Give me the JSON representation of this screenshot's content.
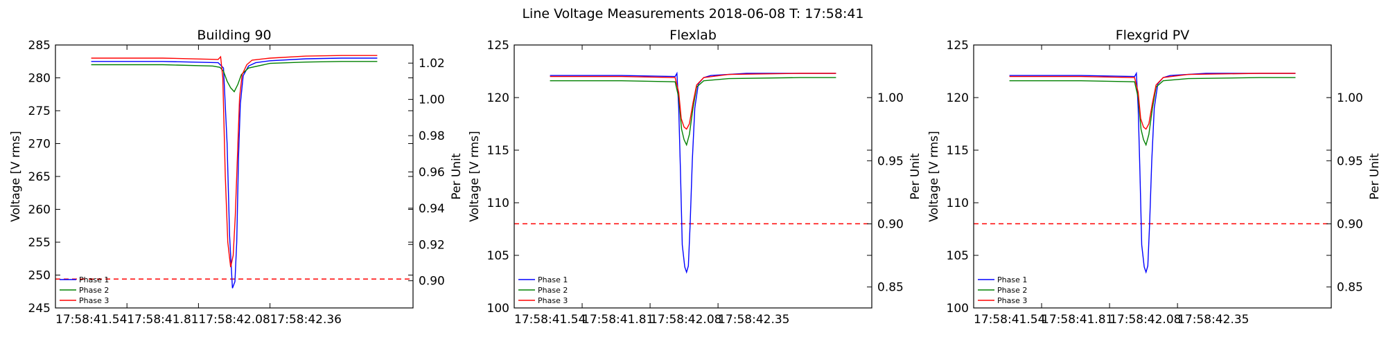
{
  "suptitle": "Line Voltage Measurements 2018-06-08 T: 17:58:41",
  "legend_labels": [
    "Phase 1",
    "Phase 2",
    "Phase 3"
  ],
  "colors": {
    "phase1": "#0000ff",
    "phase2": "#008000",
    "phase3": "#ff0000",
    "threshold": "#ff0000"
  },
  "chart_data": [
    {
      "type": "line",
      "title": "Building 90",
      "ylabel": "Voltage [V rms]",
      "ylabel2": "Per Unit",
      "xlim": [
        0,
        1.0
      ],
      "ylim": [
        245,
        285
      ],
      "yticks": [
        245,
        250,
        255,
        260,
        265,
        270,
        275,
        280,
        285
      ],
      "y2lim": [
        0.885,
        1.03
      ],
      "y2ticks": [
        0.9,
        0.92,
        0.94,
        0.96,
        0.98,
        1.0,
        1.02
      ],
      "y2ticklabels": [
        "0.90",
        "0.92",
        "0.94",
        "0.96",
        "0.98",
        "1.00",
        "1.02"
      ],
      "xtick_positions": [
        0.0,
        0.2,
        0.4,
        0.6
      ],
      "xticklabels": [
        "17:58:41.54",
        "17:58:41.81",
        "17:58:42.08",
        "17:58:42.36"
      ],
      "threshold": 249.4,
      "legend": "lower-left",
      "series": [
        {
          "name": "Phase 1",
          "color": "#0000ff",
          "points": [
            [
              0.1,
              282.5
            ],
            [
              0.3,
              282.5
            ],
            [
              0.455,
              282.3
            ],
            [
              0.47,
              281.5
            ],
            [
              0.48,
              270
            ],
            [
              0.487,
              256
            ],
            [
              0.495,
              248.0
            ],
            [
              0.502,
              249
            ],
            [
              0.507,
              255
            ],
            [
              0.512,
              268
            ],
            [
              0.517,
              276
            ],
            [
              0.525,
              280.3
            ],
            [
              0.54,
              281.8
            ],
            [
              0.56,
              282.3
            ],
            [
              0.6,
              282.6
            ],
            [
              0.7,
              282.9
            ],
            [
              0.8,
              283.0
            ],
            [
              0.9,
              283.0
            ]
          ]
        },
        {
          "name": "Phase 2",
          "color": "#008000",
          "points": [
            [
              0.1,
              282.0
            ],
            [
              0.3,
              282.0
            ],
            [
              0.44,
              281.8
            ],
            [
              0.46,
              281.6
            ],
            [
              0.47,
              281.0
            ],
            [
              0.48,
              279.5
            ],
            [
              0.49,
              278.5
            ],
            [
              0.5,
              277.9
            ],
            [
              0.51,
              279.0
            ],
            [
              0.52,
              280.5
            ],
            [
              0.54,
              281.5
            ],
            [
              0.6,
              282.2
            ],
            [
              0.7,
              282.4
            ],
            [
              0.8,
              282.5
            ],
            [
              0.9,
              282.5
            ]
          ]
        },
        {
          "name": "Phase 3",
          "color": "#ff0000",
          "points": [
            [
              0.1,
              283.0
            ],
            [
              0.3,
              283.0
            ],
            [
              0.455,
              282.8
            ],
            [
              0.462,
              283.2
            ],
            [
              0.468,
              280
            ],
            [
              0.475,
              265
            ],
            [
              0.482,
              255
            ],
            [
              0.49,
              251.2
            ],
            [
              0.497,
              253
            ],
            [
              0.503,
              259
            ],
            [
              0.509,
              268
            ],
            [
              0.515,
              277
            ],
            [
              0.522,
              280.5
            ],
            [
              0.535,
              282.0
            ],
            [
              0.55,
              282.7
            ],
            [
              0.6,
              283.0
            ],
            [
              0.7,
              283.3
            ],
            [
              0.8,
              283.4
            ],
            [
              0.9,
              283.4
            ]
          ]
        }
      ]
    },
    {
      "type": "line",
      "title": "Flexlab",
      "ylabel": "Voltage [V rms]",
      "ylabel2": "Per Unit",
      "xlim": [
        0,
        1.0
      ],
      "ylim": [
        100,
        125
      ],
      "yticks": [
        100,
        105,
        110,
        115,
        120,
        125
      ],
      "y2lim": [
        0.8334,
        1.0417
      ],
      "y2ticks": [
        0.85,
        0.9,
        0.95,
        1.0
      ],
      "y2ticklabels": [
        "0.85",
        "0.90",
        "0.95",
        "1.00"
      ],
      "xtick_positions": [
        0.0,
        0.19,
        0.38,
        0.57
      ],
      "xticklabels": [
        "17:58:41.54",
        "17:58:41.81",
        "17:58:42.08",
        "17:58:42.35"
      ],
      "threshold": 108,
      "legend": "lower-left",
      "series": [
        {
          "name": "Phase 1",
          "color": "#0000ff",
          "points": [
            [
              0.1,
              122.1
            ],
            [
              0.3,
              122.1
            ],
            [
              0.45,
              122.0
            ],
            [
              0.455,
              122.3
            ],
            [
              0.46,
              119
            ],
            [
              0.465,
              113
            ],
            [
              0.47,
              106
            ],
            [
              0.477,
              103.9
            ],
            [
              0.482,
              103.4
            ],
            [
              0.487,
              104
            ],
            [
              0.492,
              108
            ],
            [
              0.498,
              114
            ],
            [
              0.505,
              119
            ],
            [
              0.515,
              121.3
            ],
            [
              0.53,
              121.9
            ],
            [
              0.55,
              122.1
            ],
            [
              0.65,
              122.3
            ],
            [
              0.8,
              122.3
            ],
            [
              0.9,
              122.3
            ]
          ]
        },
        {
          "name": "Phase 2",
          "color": "#008000",
          "points": [
            [
              0.1,
              121.6
            ],
            [
              0.3,
              121.6
            ],
            [
              0.45,
              121.5
            ],
            [
              0.46,
              120
            ],
            [
              0.468,
              117
            ],
            [
              0.475,
              116
            ],
            [
              0.482,
              115.5
            ],
            [
              0.49,
              116.5
            ],
            [
              0.5,
              119
            ],
            [
              0.51,
              121
            ],
            [
              0.53,
              121.6
            ],
            [
              0.6,
              121.8
            ],
            [
              0.8,
              121.9
            ],
            [
              0.9,
              121.9
            ]
          ]
        },
        {
          "name": "Phase 3",
          "color": "#ff0000",
          "points": [
            [
              0.1,
              122.0
            ],
            [
              0.3,
              122.0
            ],
            [
              0.45,
              121.9
            ],
            [
              0.46,
              120.5
            ],
            [
              0.467,
              118
            ],
            [
              0.475,
              117.2
            ],
            [
              0.482,
              117.0
            ],
            [
              0.49,
              117.5
            ],
            [
              0.5,
              119.5
            ],
            [
              0.51,
              121.2
            ],
            [
              0.53,
              121.9
            ],
            [
              0.6,
              122.2
            ],
            [
              0.8,
              122.3
            ],
            [
              0.9,
              122.3
            ]
          ]
        }
      ]
    },
    {
      "type": "line",
      "title": "Flexgrid PV",
      "ylabel": "Voltage [V rms]",
      "ylabel2": "Per Unit",
      "xlim": [
        0,
        1.0
      ],
      "ylim": [
        100,
        125
      ],
      "yticks": [
        100,
        105,
        110,
        115,
        120,
        125
      ],
      "y2lim": [
        0.8334,
        1.0417
      ],
      "y2ticks": [
        0.85,
        0.9,
        0.95,
        1.0
      ],
      "y2ticklabels": [
        "0.85",
        "0.90",
        "0.95",
        "1.00"
      ],
      "xtick_positions": [
        0.0,
        0.19,
        0.38,
        0.57
      ],
      "xticklabels": [
        "17:58:41.54",
        "17:58:41.81",
        "17:58:42.08",
        "17:58:42.35"
      ],
      "threshold": 108,
      "legend": "lower-left",
      "series": [
        {
          "name": "Phase 1",
          "color": "#0000ff",
          "points": [
            [
              0.1,
              122.1
            ],
            [
              0.3,
              122.1
            ],
            [
              0.45,
              122.0
            ],
            [
              0.455,
              122.3
            ],
            [
              0.46,
              119
            ],
            [
              0.465,
              113
            ],
            [
              0.47,
              106
            ],
            [
              0.477,
              103.9
            ],
            [
              0.482,
              103.4
            ],
            [
              0.487,
              104
            ],
            [
              0.492,
              108
            ],
            [
              0.498,
              114
            ],
            [
              0.505,
              119
            ],
            [
              0.515,
              121.3
            ],
            [
              0.53,
              121.9
            ],
            [
              0.55,
              122.1
            ],
            [
              0.65,
              122.3
            ],
            [
              0.8,
              122.3
            ],
            [
              0.9,
              122.3
            ]
          ]
        },
        {
          "name": "Phase 2",
          "color": "#008000",
          "points": [
            [
              0.1,
              121.6
            ],
            [
              0.3,
              121.6
            ],
            [
              0.45,
              121.5
            ],
            [
              0.46,
              120
            ],
            [
              0.468,
              117
            ],
            [
              0.475,
              116
            ],
            [
              0.482,
              115.5
            ],
            [
              0.49,
              116.5
            ],
            [
              0.5,
              119
            ],
            [
              0.51,
              121
            ],
            [
              0.53,
              121.6
            ],
            [
              0.6,
              121.8
            ],
            [
              0.8,
              121.9
            ],
            [
              0.9,
              121.9
            ]
          ]
        },
        {
          "name": "Phase 3",
          "color": "#ff0000",
          "points": [
            [
              0.1,
              122.0
            ],
            [
              0.3,
              122.0
            ],
            [
              0.45,
              121.9
            ],
            [
              0.46,
              120.5
            ],
            [
              0.467,
              118
            ],
            [
              0.475,
              117.2
            ],
            [
              0.482,
              117.0
            ],
            [
              0.49,
              117.5
            ],
            [
              0.5,
              119.5
            ],
            [
              0.51,
              121.2
            ],
            [
              0.53,
              121.9
            ],
            [
              0.6,
              122.2
            ],
            [
              0.8,
              122.3
            ],
            [
              0.9,
              122.3
            ]
          ]
        }
      ]
    }
  ]
}
